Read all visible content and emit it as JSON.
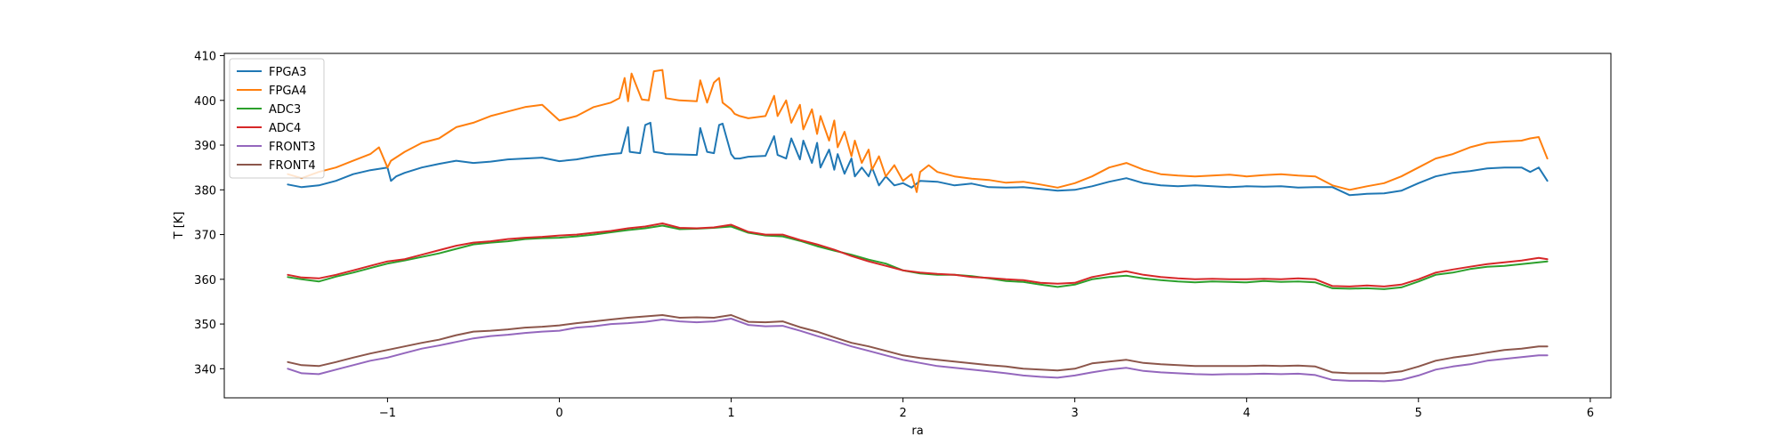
{
  "chart_data": {
    "type": "line",
    "title": "",
    "xlabel": "ra",
    "ylabel": "T [K]",
    "xlim": [
      -1.95,
      6.12
    ],
    "ylim": [
      333.5,
      410.5
    ],
    "xticks": [
      -1,
      0,
      1,
      2,
      3,
      4,
      5,
      6
    ],
    "xtick_labels": [
      "−1",
      "0",
      "1",
      "2",
      "3",
      "4",
      "5",
      "6"
    ],
    "yticks": [
      340,
      350,
      360,
      370,
      380,
      390,
      400,
      410
    ],
    "ytick_labels": [
      "340",
      "350",
      "360",
      "370",
      "380",
      "390",
      "400",
      "410"
    ],
    "grid": false,
    "legend_position": "upper-left",
    "series": [
      {
        "name": "FPGA3",
        "color": "#1f77b4",
        "x": [
          -1.58,
          -1.5,
          -1.4,
          -1.3,
          -1.2,
          -1.1,
          -1.0,
          -0.98,
          -0.95,
          -0.9,
          -0.8,
          -0.7,
          -0.6,
          -0.5,
          -0.4,
          -0.3,
          -0.2,
          -0.1,
          0.0,
          0.1,
          0.2,
          0.3,
          0.36,
          0.4,
          0.41,
          0.47,
          0.5,
          0.53,
          0.55,
          0.6,
          0.62,
          0.8,
          0.82,
          0.86,
          0.9,
          0.93,
          0.95,
          1.0,
          1.02,
          1.05,
          1.1,
          1.2,
          1.25,
          1.27,
          1.32,
          1.35,
          1.4,
          1.42,
          1.47,
          1.5,
          1.52,
          1.57,
          1.6,
          1.62,
          1.66,
          1.7,
          1.72,
          1.76,
          1.8,
          1.82,
          1.86,
          1.9,
          1.95,
          2.0,
          2.05,
          2.1,
          2.2,
          2.3,
          2.4,
          2.5,
          2.6,
          2.7,
          2.8,
          2.9,
          3.0,
          3.1,
          3.2,
          3.3,
          3.4,
          3.5,
          3.6,
          3.7,
          3.8,
          3.9,
          4.0,
          4.1,
          4.2,
          4.3,
          4.4,
          4.5,
          4.6,
          4.7,
          4.8,
          4.9,
          5.0,
          5.1,
          5.2,
          5.3,
          5.4,
          5.5,
          5.6,
          5.65,
          5.7,
          5.75
        ],
        "values": [
          381.2,
          380.6,
          381.0,
          382.0,
          383.5,
          384.4,
          385.0,
          382.0,
          383.0,
          383.8,
          385.0,
          385.8,
          386.5,
          386.0,
          386.3,
          386.8,
          387.0,
          387.2,
          386.4,
          386.8,
          387.5,
          388.0,
          388.2,
          394.0,
          388.5,
          388.2,
          394.5,
          395.0,
          388.5,
          388.2,
          388.0,
          387.8,
          393.8,
          388.5,
          388.2,
          394.5,
          394.8,
          388.0,
          387.0,
          387.0,
          387.4,
          387.6,
          392.0,
          387.8,
          387.0,
          391.5,
          386.8,
          391.0,
          386.0,
          390.5,
          385.0,
          389.0,
          384.5,
          388.0,
          383.6,
          387.0,
          383.0,
          385.0,
          383.0,
          385.0,
          381.0,
          383.0,
          381.0,
          381.5,
          380.5,
          382.0,
          381.8,
          381.0,
          381.4,
          380.6,
          380.5,
          380.6,
          380.2,
          379.8,
          380.0,
          380.8,
          381.8,
          382.6,
          381.5,
          381.0,
          380.8,
          381.0,
          380.8,
          380.6,
          380.8,
          380.7,
          380.8,
          380.5,
          380.6,
          380.6,
          378.8,
          379.1,
          379.2,
          379.8,
          381.5,
          383.0,
          383.8,
          384.2,
          384.8,
          385.0,
          385.0,
          384.0,
          385.0,
          382.0
        ]
      },
      {
        "name": "FPGA4",
        "color": "#ff7f0e",
        "x": [
          -1.58,
          -1.5,
          -1.4,
          -1.3,
          -1.2,
          -1.1,
          -1.05,
          -1.0,
          -0.98,
          -0.9,
          -0.8,
          -0.7,
          -0.6,
          -0.5,
          -0.4,
          -0.3,
          -0.2,
          -0.1,
          0.0,
          0.1,
          0.2,
          0.3,
          0.35,
          0.38,
          0.4,
          0.42,
          0.48,
          0.52,
          0.55,
          0.6,
          0.62,
          0.7,
          0.8,
          0.82,
          0.86,
          0.9,
          0.93,
          0.95,
          1.0,
          1.02,
          1.05,
          1.1,
          1.2,
          1.25,
          1.27,
          1.32,
          1.35,
          1.4,
          1.42,
          1.47,
          1.5,
          1.52,
          1.57,
          1.6,
          1.62,
          1.66,
          1.7,
          1.72,
          1.76,
          1.8,
          1.82,
          1.86,
          1.9,
          1.95,
          2.0,
          2.05,
          2.08,
          2.1,
          2.15,
          2.2,
          2.3,
          2.4,
          2.5,
          2.6,
          2.7,
          2.8,
          2.9,
          3.0,
          3.1,
          3.2,
          3.3,
          3.4,
          3.5,
          3.6,
          3.7,
          3.8,
          3.9,
          4.0,
          4.1,
          4.2,
          4.3,
          4.4,
          4.5,
          4.6,
          4.7,
          4.8,
          4.9,
          5.0,
          5.1,
          5.2,
          5.3,
          5.4,
          5.5,
          5.6,
          5.65,
          5.7,
          5.75
        ],
        "values": [
          383.5,
          382.6,
          384.0,
          385.0,
          386.5,
          388.0,
          389.5,
          385.0,
          386.5,
          388.5,
          390.5,
          391.5,
          394.0,
          395.0,
          396.5,
          397.5,
          398.5,
          399.0,
          395.5,
          396.5,
          398.5,
          399.5,
          400.5,
          405.0,
          399.8,
          406.0,
          400.2,
          400.0,
          406.5,
          406.8,
          400.5,
          400.0,
          399.8,
          404.5,
          399.5,
          404.0,
          405.0,
          399.5,
          398.0,
          397.0,
          396.5,
          396.0,
          396.5,
          401.0,
          396.5,
          400.0,
          395.0,
          399.0,
          393.5,
          398.0,
          392.5,
          396.5,
          391.0,
          395.5,
          389.5,
          393.0,
          387.5,
          391.0,
          386.0,
          389.0,
          384.5,
          387.5,
          383.0,
          385.5,
          382.0,
          383.5,
          379.5,
          384.0,
          385.5,
          384.0,
          383.0,
          382.5,
          382.2,
          381.6,
          381.8,
          381.2,
          380.5,
          381.5,
          383.0,
          385.0,
          386.0,
          384.5,
          383.5,
          383.2,
          383.0,
          383.2,
          383.4,
          383.0,
          383.3,
          383.5,
          383.2,
          383.0,
          381.0,
          380.0,
          380.8,
          381.5,
          383.0,
          385.0,
          387.0,
          388.0,
          389.5,
          390.5,
          390.8,
          391.0,
          391.5,
          391.8,
          387.0
        ]
      },
      {
        "name": "ADC3",
        "color": "#2ca02c",
        "x": [
          -1.58,
          -1.5,
          -1.4,
          -1.3,
          -1.2,
          -1.1,
          -1.0,
          -0.9,
          -0.8,
          -0.7,
          -0.6,
          -0.5,
          -0.4,
          -0.3,
          -0.2,
          -0.1,
          0.0,
          0.1,
          0.2,
          0.3,
          0.4,
          0.5,
          0.6,
          0.7,
          0.8,
          0.9,
          1.0,
          1.1,
          1.2,
          1.3,
          1.4,
          1.5,
          1.6,
          1.7,
          1.8,
          1.9,
          2.0,
          2.1,
          2.2,
          2.3,
          2.4,
          2.5,
          2.6,
          2.7,
          2.8,
          2.9,
          3.0,
          3.1,
          3.2,
          3.3,
          3.4,
          3.5,
          3.6,
          3.7,
          3.8,
          3.9,
          4.0,
          4.1,
          4.2,
          4.3,
          4.4,
          4.5,
          4.6,
          4.7,
          4.8,
          4.9,
          5.0,
          5.1,
          5.2,
          5.3,
          5.4,
          5.5,
          5.6,
          5.7,
          5.75
        ],
        "values": [
          360.5,
          360.0,
          359.5,
          360.6,
          361.5,
          362.5,
          363.5,
          364.2,
          365.0,
          365.8,
          366.8,
          367.8,
          368.2,
          368.5,
          369.0,
          369.2,
          369.3,
          369.6,
          370.0,
          370.5,
          371.0,
          371.4,
          372.0,
          371.2,
          371.3,
          371.5,
          371.8,
          370.4,
          369.8,
          369.6,
          368.6,
          367.4,
          366.4,
          365.5,
          364.4,
          363.5,
          362.0,
          361.3,
          361.0,
          361.0,
          360.7,
          360.2,
          359.6,
          359.4,
          358.8,
          358.3,
          358.8,
          360.0,
          360.5,
          360.8,
          360.2,
          359.8,
          359.5,
          359.3,
          359.5,
          359.4,
          359.3,
          359.6,
          359.4,
          359.5,
          359.3,
          358.0,
          357.9,
          358.0,
          357.8,
          358.2,
          359.5,
          361.0,
          361.5,
          362.3,
          362.8,
          363.0,
          363.4,
          363.8,
          364.0
        ]
      },
      {
        "name": "ADC4",
        "color": "#d62728",
        "x": [
          -1.58,
          -1.5,
          -1.4,
          -1.3,
          -1.2,
          -1.1,
          -1.0,
          -0.9,
          -0.8,
          -0.7,
          -0.6,
          -0.5,
          -0.4,
          -0.3,
          -0.2,
          -0.1,
          0.0,
          0.1,
          0.2,
          0.3,
          0.4,
          0.5,
          0.6,
          0.7,
          0.8,
          0.9,
          1.0,
          1.1,
          1.2,
          1.3,
          1.4,
          1.5,
          1.6,
          1.7,
          1.8,
          1.9,
          2.0,
          2.1,
          2.2,
          2.3,
          2.4,
          2.5,
          2.6,
          2.7,
          2.8,
          2.9,
          3.0,
          3.1,
          3.2,
          3.3,
          3.4,
          3.5,
          3.6,
          3.7,
          3.8,
          3.9,
          4.0,
          4.1,
          4.2,
          4.3,
          4.4,
          4.5,
          4.6,
          4.7,
          4.8,
          4.9,
          5.0,
          5.1,
          5.2,
          5.3,
          5.4,
          5.5,
          5.6,
          5.7,
          5.75
        ],
        "values": [
          361.0,
          360.4,
          360.2,
          361.0,
          362.0,
          363.0,
          364.0,
          364.5,
          365.5,
          366.5,
          367.5,
          368.2,
          368.5,
          369.0,
          369.3,
          369.5,
          369.8,
          370.0,
          370.4,
          370.8,
          371.4,
          371.8,
          372.5,
          371.5,
          371.4,
          371.6,
          372.2,
          370.6,
          370.0,
          370.0,
          368.8,
          367.8,
          366.6,
          365.2,
          364.0,
          363.0,
          362.0,
          361.5,
          361.2,
          361.0,
          360.5,
          360.3,
          360.0,
          359.8,
          359.2,
          359.0,
          359.2,
          360.5,
          361.2,
          361.8,
          361.0,
          360.5,
          360.2,
          360.0,
          360.1,
          360.0,
          360.0,
          360.1,
          360.0,
          360.2,
          360.0,
          358.5,
          358.4,
          358.6,
          358.4,
          358.8,
          360.0,
          361.5,
          362.2,
          362.8,
          363.4,
          363.8,
          364.2,
          364.8,
          364.5
        ]
      },
      {
        "name": "FRONT3",
        "color": "#9467bd",
        "x": [
          -1.58,
          -1.5,
          -1.4,
          -1.3,
          -1.2,
          -1.1,
          -1.0,
          -0.9,
          -0.8,
          -0.7,
          -0.6,
          -0.5,
          -0.4,
          -0.3,
          -0.2,
          -0.1,
          0.0,
          0.1,
          0.2,
          0.3,
          0.4,
          0.5,
          0.6,
          0.7,
          0.8,
          0.9,
          1.0,
          1.1,
          1.2,
          1.3,
          1.4,
          1.5,
          1.6,
          1.7,
          1.8,
          1.9,
          2.0,
          2.1,
          2.2,
          2.3,
          2.4,
          2.5,
          2.6,
          2.7,
          2.8,
          2.9,
          3.0,
          3.1,
          3.2,
          3.3,
          3.4,
          3.5,
          3.6,
          3.7,
          3.8,
          3.9,
          4.0,
          4.1,
          4.2,
          4.3,
          4.4,
          4.5,
          4.6,
          4.7,
          4.8,
          4.9,
          5.0,
          5.1,
          5.2,
          5.3,
          5.4,
          5.5,
          5.6,
          5.7,
          5.75
        ],
        "values": [
          340.0,
          339.0,
          338.8,
          339.8,
          340.8,
          341.8,
          342.5,
          343.5,
          344.5,
          345.2,
          346.0,
          346.8,
          347.3,
          347.6,
          348.0,
          348.3,
          348.5,
          349.2,
          349.5,
          350.0,
          350.2,
          350.5,
          351.0,
          350.6,
          350.4,
          350.6,
          351.2,
          349.8,
          349.5,
          349.6,
          348.5,
          347.3,
          346.2,
          345.0,
          344.0,
          343.0,
          342.0,
          341.3,
          340.6,
          340.2,
          339.8,
          339.4,
          339.0,
          338.5,
          338.2,
          338.0,
          338.5,
          339.2,
          339.8,
          340.2,
          339.5,
          339.2,
          339.0,
          338.8,
          338.7,
          338.8,
          338.8,
          338.9,
          338.8,
          338.9,
          338.6,
          337.5,
          337.3,
          337.3,
          337.2,
          337.5,
          338.5,
          339.8,
          340.5,
          341.0,
          341.8,
          342.2,
          342.6,
          343.0,
          343.0
        ]
      },
      {
        "name": "FRONT4",
        "color": "#8c564b",
        "x": [
          -1.58,
          -1.5,
          -1.4,
          -1.3,
          -1.2,
          -1.1,
          -1.0,
          -0.9,
          -0.8,
          -0.7,
          -0.6,
          -0.5,
          -0.4,
          -0.3,
          -0.2,
          -0.1,
          0.0,
          0.1,
          0.2,
          0.3,
          0.4,
          0.5,
          0.6,
          0.7,
          0.8,
          0.9,
          1.0,
          1.1,
          1.2,
          1.3,
          1.4,
          1.5,
          1.6,
          1.7,
          1.8,
          1.9,
          2.0,
          2.1,
          2.2,
          2.3,
          2.4,
          2.5,
          2.6,
          2.7,
          2.8,
          2.9,
          3.0,
          3.1,
          3.2,
          3.3,
          3.4,
          3.5,
          3.6,
          3.7,
          3.8,
          3.9,
          4.0,
          4.1,
          4.2,
          4.3,
          4.4,
          4.5,
          4.6,
          4.7,
          4.8,
          4.9,
          5.0,
          5.1,
          5.2,
          5.3,
          5.4,
          5.5,
          5.6,
          5.7,
          5.75
        ],
        "values": [
          341.5,
          340.8,
          340.6,
          341.5,
          342.5,
          343.4,
          344.2,
          345.0,
          345.8,
          346.5,
          347.5,
          348.3,
          348.5,
          348.8,
          349.2,
          349.4,
          349.7,
          350.2,
          350.6,
          351.0,
          351.4,
          351.7,
          352.0,
          351.4,
          351.5,
          351.4,
          352.0,
          350.5,
          350.4,
          350.6,
          349.3,
          348.3,
          347.0,
          345.8,
          345.0,
          344.0,
          343.0,
          342.4,
          342.0,
          341.6,
          341.2,
          340.8,
          340.5,
          340.0,
          339.8,
          339.6,
          340.0,
          341.2,
          341.6,
          342.0,
          341.3,
          341.0,
          340.8,
          340.6,
          340.6,
          340.6,
          340.6,
          340.7,
          340.6,
          340.7,
          340.5,
          339.2,
          339.0,
          339.0,
          339.0,
          339.4,
          340.5,
          341.8,
          342.5,
          343.0,
          343.6,
          344.2,
          344.5,
          345.0,
          345.0
        ]
      }
    ]
  }
}
